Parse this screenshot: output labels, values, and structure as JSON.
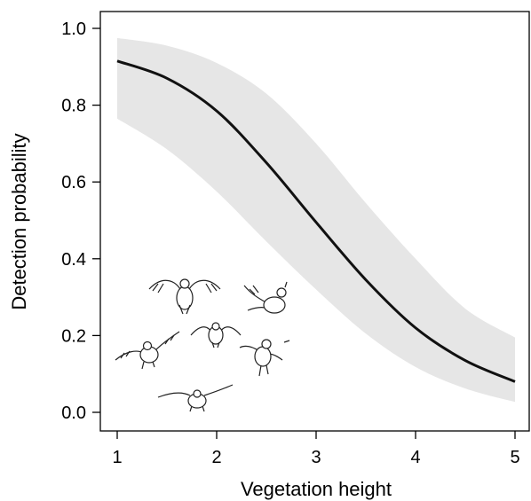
{
  "chart_data": {
    "type": "line",
    "title": "",
    "xlabel": "Vegetation height",
    "ylabel": "Detection probability",
    "xlim": [
      1,
      5
    ],
    "ylim": [
      0,
      1
    ],
    "xticks": [
      1,
      2,
      3,
      4,
      5
    ],
    "xtick_labels": [
      "1",
      "2",
      "3",
      "4",
      "5"
    ],
    "yticks": [
      0,
      0.2,
      0.4,
      0.6,
      0.8,
      1.0
    ],
    "ytick_labels": [
      "0.0",
      "0.2",
      "0.4",
      "0.6",
      "0.8",
      "1.0"
    ],
    "grid": false,
    "legend": "none",
    "series": [
      {
        "x": [
          1,
          1.5,
          2,
          2.5,
          3,
          3.5,
          4,
          4.5,
          5
        ],
        "y": [
          0.915,
          0.87,
          0.785,
          0.65,
          0.495,
          0.345,
          0.22,
          0.135,
          0.08
        ],
        "lower": [
          0.765,
          0.685,
          0.575,
          0.445,
          0.32,
          0.205,
          0.118,
          0.062,
          0.027
        ],
        "upper": [
          0.975,
          0.955,
          0.91,
          0.83,
          0.7,
          0.545,
          0.4,
          0.27,
          0.195
        ],
        "line_color": "#111111",
        "band_color": "#e6e6e6"
      }
    ],
    "illustration": "flying quail (bobwhite) birds"
  }
}
